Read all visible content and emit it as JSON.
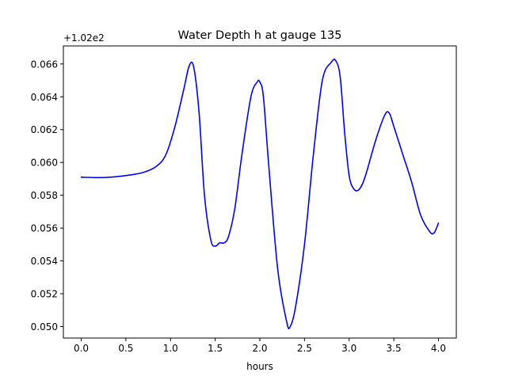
{
  "chart_data": {
    "type": "line",
    "title": "Water Depth h at gauge 135",
    "xlabel": "hours",
    "ylabel": "",
    "offset_label": "+1.02e2",
    "xlim": [
      -0.2,
      4.2
    ],
    "ylim": [
      0.0493,
      0.0671
    ],
    "xticks": [
      0.0,
      0.5,
      1.0,
      1.5,
      2.0,
      2.5,
      3.0,
      3.5,
      4.0
    ],
    "xtick_labels": [
      "0.0",
      "0.5",
      "1.0",
      "1.5",
      "2.0",
      "2.5",
      "3.0",
      "3.5",
      "4.0"
    ],
    "yticks": [
      0.05,
      0.052,
      0.054,
      0.056,
      0.058,
      0.06,
      0.062,
      0.064,
      0.066
    ],
    "ytick_labels": [
      "0.050",
      "0.052",
      "0.054",
      "0.056",
      "0.058",
      "0.060",
      "0.062",
      "0.064",
      "0.066"
    ],
    "grid": false,
    "series": [
      {
        "color": "#0000ff",
        "x": [
          0.0,
          0.25,
          0.5,
          0.7,
          0.85,
          0.95,
          1.05,
          1.15,
          1.21,
          1.26,
          1.32,
          1.38,
          1.45,
          1.5,
          1.55,
          1.6,
          1.65,
          1.72,
          1.8,
          1.9,
          1.97,
          2.0,
          2.04,
          2.1,
          2.2,
          2.3,
          2.34,
          2.4,
          2.5,
          2.6,
          2.7,
          2.8,
          2.85,
          2.9,
          2.95,
          3.0,
          3.05,
          3.1,
          3.15,
          3.2,
          3.3,
          3.4,
          3.45,
          3.5,
          3.6,
          3.7,
          3.8,
          3.9,
          3.95,
          4.0
        ],
        "y": [
          0.0591,
          0.05908,
          0.0592,
          0.0594,
          0.0598,
          0.0605,
          0.0622,
          0.0645,
          0.0659,
          0.0658,
          0.063,
          0.058,
          0.0553,
          0.0549,
          0.0551,
          0.0551,
          0.0555,
          0.0572,
          0.0605,
          0.064,
          0.0649,
          0.0649,
          0.064,
          0.0598,
          0.0535,
          0.0503,
          0.05,
          0.0512,
          0.055,
          0.0605,
          0.065,
          0.0661,
          0.0662,
          0.0652,
          0.0618,
          0.0592,
          0.0584,
          0.0583,
          0.0587,
          0.0595,
          0.0614,
          0.0629,
          0.063,
          0.0622,
          0.0605,
          0.0588,
          0.0568,
          0.0558,
          0.0557,
          0.0563
        ]
      }
    ]
  }
}
